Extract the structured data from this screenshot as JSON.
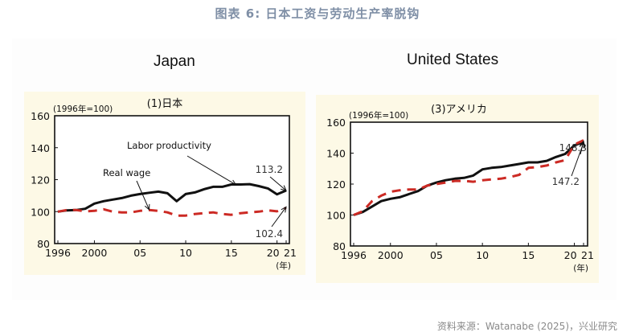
{
  "figure_title": "图表 6:  日本工资与劳动生产率脱钩",
  "source": "资料来源：Watanabe (2025)，兴业研究",
  "colors": {
    "productivity": "#111111",
    "wage": "#cc2a24",
    "panel_bg": "#fdf9e6",
    "title": "#7f8fa6"
  },
  "chart_data": [
    {
      "type": "line",
      "heading": "Japan",
      "title": "(1)日本",
      "unit_label": "(1996年=100)",
      "xlabel": "(年)",
      "ylabel": "",
      "ylim": [
        80,
        160
      ],
      "yticks": [
        "160",
        "140",
        "120",
        "100",
        "80"
      ],
      "xlim": [
        1996,
        2021
      ],
      "xticks": [
        {
          "year": 1996,
          "label": "1996"
        },
        {
          "year": 2000,
          "label": "2000"
        },
        {
          "year": 2005,
          "label": "05"
        },
        {
          "year": 2010,
          "label": "10"
        },
        {
          "year": 2015,
          "label": "15"
        },
        {
          "year": 2020,
          "label": "20"
        },
        {
          "year": 2021,
          "label": "21"
        }
      ],
      "x": [
        1996,
        1997,
        1998,
        1999,
        2000,
        2001,
        2002,
        2003,
        2004,
        2005,
        2006,
        2007,
        2008,
        2009,
        2010,
        2011,
        2012,
        2013,
        2014,
        2015,
        2016,
        2017,
        2018,
        2019,
        2020,
        2021
      ],
      "series": [
        {
          "name": "Labor productivity",
          "style": "solid",
          "values": [
            100,
            100.8,
            101,
            101.8,
            105,
            106.5,
            107.5,
            108.5,
            110,
            111,
            111.8,
            112.5,
            111.5,
            106.5,
            111,
            112,
            114,
            115.5,
            115.5,
            117,
            117,
            117.2,
            116,
            114.5,
            110.8,
            113.2
          ]
        },
        {
          "name": "Real wage",
          "style": "dashed",
          "values": [
            100,
            101,
            101,
            100.2,
            100.5,
            101.5,
            100,
            99.5,
            99.5,
            100.5,
            101,
            100.5,
            99.5,
            97.5,
            97.5,
            98.5,
            99,
            99.5,
            98.5,
            98,
            99,
            99.5,
            100,
            100.8,
            100.2,
            102.4
          ]
        }
      ],
      "annotations": [
        {
          "text": "Labor productivity",
          "target_series": "Labor productivity"
        },
        {
          "text": "Real wage",
          "target_series": "Real wage"
        },
        {
          "text": "113.2",
          "target": "Labor productivity 2021"
        },
        {
          "text": "102.4",
          "target": "Real wage 2021"
        }
      ]
    },
    {
      "type": "line",
      "heading": "United States",
      "title": "(3)アメリカ",
      "unit_label": "(1996年=100)",
      "xlabel": "(年)",
      "ylabel": "",
      "ylim": [
        80,
        160
      ],
      "yticks": [
        "160",
        "140",
        "120",
        "100",
        "80"
      ],
      "xlim": [
        1996,
        2021
      ],
      "xticks": [
        {
          "year": 1996,
          "label": "1996"
        },
        {
          "year": 2000,
          "label": "2000"
        },
        {
          "year": 2005,
          "label": "05"
        },
        {
          "year": 2010,
          "label": "10"
        },
        {
          "year": 2015,
          "label": "15"
        },
        {
          "year": 2020,
          "label": "20"
        },
        {
          "year": 2021,
          "label": "21"
        }
      ],
      "x": [
        1996,
        1997,
        1998,
        1999,
        2000,
        2001,
        2002,
        2003,
        2004,
        2005,
        2006,
        2007,
        2008,
        2009,
        2010,
        2011,
        2012,
        2013,
        2014,
        2015,
        2016,
        2017,
        2018,
        2019,
        2020,
        2021
      ],
      "series": [
        {
          "name": "Labor productivity",
          "style": "solid",
          "values": [
            100,
            102,
            105.5,
            109,
            110.5,
            111.5,
            113.5,
            115.5,
            119,
            121,
            122.5,
            123.5,
            124,
            125.5,
            129.5,
            130.5,
            131,
            132,
            133,
            134,
            134,
            135,
            137.5,
            139.5,
            145,
            147.2
          ]
        },
        {
          "name": "Real wage",
          "style": "dashed",
          "values": [
            100,
            102.5,
            109,
            112.5,
            115,
            116,
            116.5,
            116.5,
            119,
            120,
            121,
            122,
            122,
            121.5,
            122.5,
            123,
            123.5,
            124.5,
            126,
            130.5,
            131,
            132,
            134,
            135.5,
            145.5,
            148.3
          ]
        }
      ],
      "annotations": [
        {
          "text": "148.3",
          "target": "Real wage 2021"
        },
        {
          "text": "147.2",
          "target": "Labor productivity 2021"
        }
      ]
    }
  ]
}
